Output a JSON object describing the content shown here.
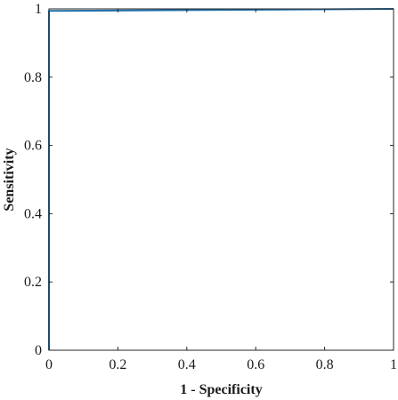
{
  "chart_data": {
    "type": "line",
    "title": "",
    "xlabel": "1 - Specificity",
    "ylabel": "Sensitivity",
    "xlim": [
      0,
      1
    ],
    "ylim": [
      0,
      1
    ],
    "x_ticks": [
      "0",
      "0.2",
      "0.4",
      "0.6",
      "0.8",
      "1"
    ],
    "y_ticks": [
      "0",
      "0.2",
      "0.4",
      "0.6",
      "0.8",
      "1"
    ],
    "grid": false,
    "series": [
      {
        "color": "#1f6fa8",
        "x": [
          0,
          0,
          0.5,
          1
        ],
        "y": [
          0,
          0.994,
          0.997,
          1
        ]
      }
    ]
  }
}
